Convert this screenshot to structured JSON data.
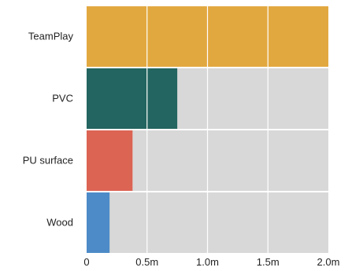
{
  "chart_data": {
    "type": "bar",
    "orientation": "horizontal",
    "categories": [
      "TeamPlay",
      "PVC",
      "PU surface",
      "Wood"
    ],
    "values": [
      2.0,
      0.75,
      0.38,
      0.19
    ],
    "unit": "m",
    "colors": [
      "#E2A840",
      "#236560",
      "#DC6453",
      "#4D8BC8"
    ],
    "track_color": "#D8D8D8",
    "xlim": [
      0,
      2.0
    ],
    "x_ticks": [
      0,
      0.5,
      1.0,
      1.5,
      2.0
    ],
    "x_tick_labels": [
      "0",
      "0.5m",
      "1.0m",
      "1.5m",
      "2.0m"
    ],
    "grid": true,
    "grid_color": "#ffffff",
    "legend": "none",
    "title": "",
    "xlabel": "",
    "ylabel": ""
  }
}
